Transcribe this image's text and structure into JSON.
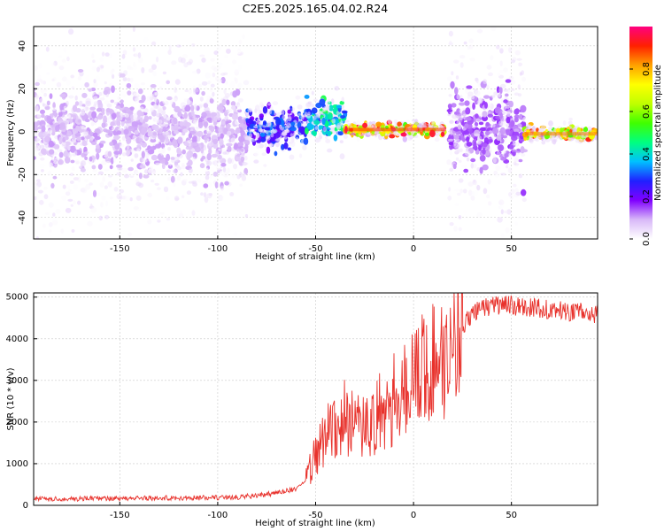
{
  "chart_data": [
    {
      "type": "heatmap",
      "title": "C2E5.2025.165.04.02.R24",
      "xlabel": "Height of straight line (km)",
      "ylabel": "Frequency (Hz)",
      "xlim": [
        -194,
        94
      ],
      "ylim": [
        -50,
        49
      ],
      "xticks": [
        -150,
        -100,
        -50,
        0,
        50
      ],
      "yticks": [
        -40,
        -20,
        0,
        20,
        40
      ],
      "grid": true,
      "colorbar": {
        "label": "Normalized spectral amplitude",
        "range": [
          0,
          1
        ],
        "ticks": [
          "0.0",
          "0.2",
          "0.4",
          "0.6",
          "0.8"
        ],
        "colors": [
          "#ffffff",
          "#d8b8f8",
          "#8000ff",
          "#2020ff",
          "#00c0ff",
          "#00ff80",
          "#40ff00",
          "#c0ff00",
          "#ffff00",
          "#ffa000",
          "#ff2000",
          "#ff0080"
        ]
      },
      "description_segments": [
        {
          "x": [
            -194,
            -85
          ],
          "freq_center": 0,
          "amplitude": 0.1,
          "spread": "wide"
        },
        {
          "x": [
            -85,
            -55
          ],
          "freq_center": 2,
          "amplitude": 0.3,
          "spread": "medium"
        },
        {
          "x": [
            -55,
            -35
          ],
          "freq_center": 6,
          "amplitude": 0.45,
          "spread": "medium"
        },
        {
          "x": [
            -35,
            16
          ],
          "freq_center": 1,
          "amplitude": 0.9,
          "spread": "narrow"
        },
        {
          "x": [
            18,
            57
          ],
          "freq_center": 1,
          "amplitude": 0.15,
          "spread": "wide"
        },
        {
          "x": [
            57,
            94
          ],
          "freq_center": -1,
          "amplitude": 0.85,
          "spread": "narrow"
        }
      ]
    },
    {
      "type": "line",
      "xlabel": "Height of straight line (km)",
      "ylabel": "SNR (10 * v/v)",
      "xlim": [
        -194,
        94
      ],
      "ylim": [
        0,
        5100
      ],
      "xticks": [
        -150,
        -100,
        -50,
        0,
        50
      ],
      "yticks": [
        0,
        1000,
        2000,
        3000,
        4000,
        5000
      ],
      "grid": true,
      "series": [
        {
          "color": "#e8322c",
          "x": [
            -194,
            -170,
            -150,
            -130,
            -110,
            -100,
            -90,
            -80,
            -70,
            -60,
            -55,
            -50,
            -45,
            -40,
            -35,
            -30,
            -25,
            -20,
            -15,
            -10,
            -5,
            0,
            5,
            10,
            15,
            20,
            25,
            30,
            35,
            40,
            50,
            60,
            70,
            80,
            94
          ],
          "y": [
            150,
            160,
            170,
            175,
            180,
            190,
            200,
            230,
            300,
            400,
            600,
            1200,
            1700,
            2000,
            2100,
            1900,
            1800,
            2100,
            2300,
            2600,
            2800,
            3000,
            3300,
            3400,
            3600,
            3900,
            4300,
            4600,
            4750,
            4800,
            4800,
            4750,
            4700,
            4650,
            4600
          ]
        }
      ]
    }
  ]
}
